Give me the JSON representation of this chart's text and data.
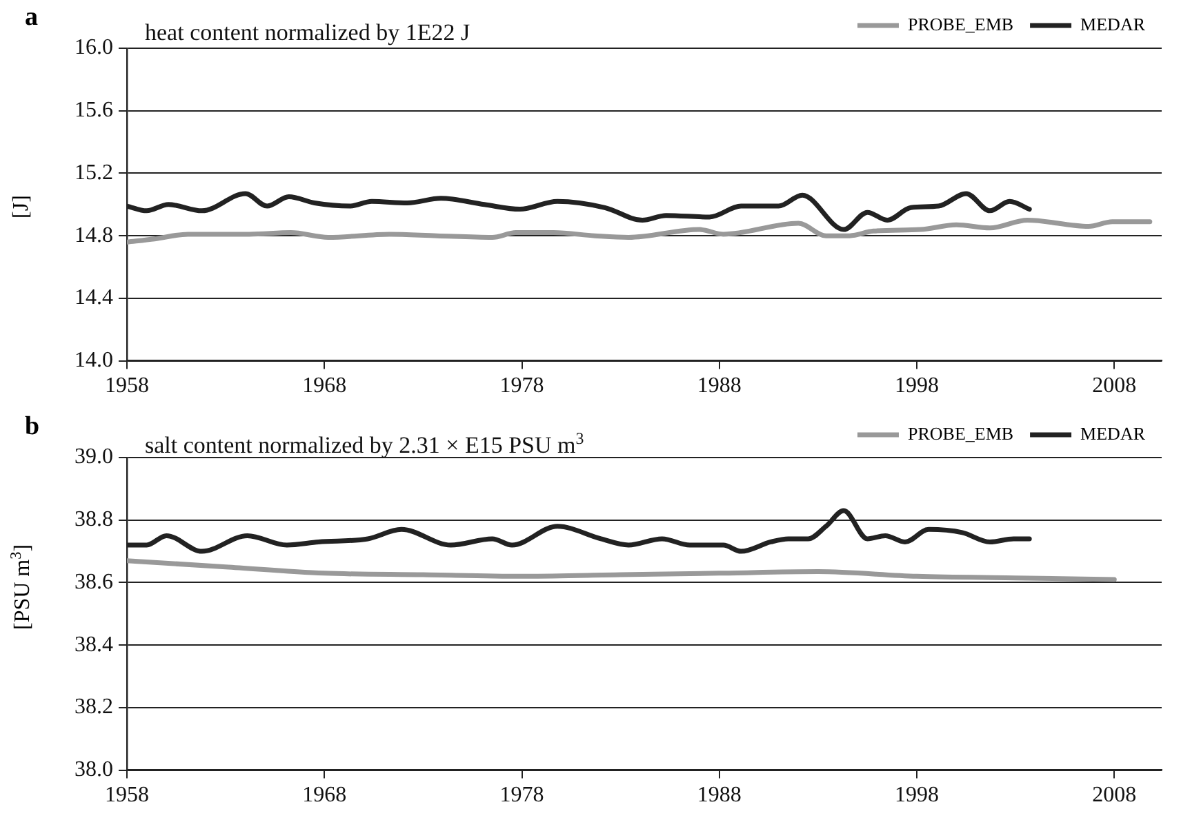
{
  "chart_data": [
    {
      "type": "line",
      "title": "heat content normalized by 1E22 J",
      "ylabel": "[J]",
      "annotations": [
        "a"
      ],
      "legend": "top right",
      "grid": "y",
      "marker": "none",
      "line_style": "solid",
      "xlim": [
        1958,
        2010.4
      ],
      "xticks": [
        1958,
        1968,
        1978,
        1988,
        1998,
        2008
      ],
      "ylim": [
        14.0,
        16.0
      ],
      "yticks": [
        {
          "value": 14.0,
          "label": "14.0"
        },
        {
          "value": 14.4,
          "label": "14.4"
        },
        {
          "value": 14.8,
          "label": "14.8"
        },
        {
          "value": 15.2,
          "label": "15.2"
        },
        {
          "value": 15.6,
          "label": "15.6"
        },
        {
          "value": 16.0,
          "label": "16.0"
        }
      ],
      "series": [
        {
          "name": "PROBE_EMB",
          "color": "#999999",
          "x": [
            1958,
            1959.4,
            1961.1,
            1964.2,
            1966.3,
            1968.2,
            1971.3,
            1973.7,
            1976.5,
            1977.7,
            1979.6,
            1981.7,
            1983.4,
            1987,
            1988.2,
            1992,
            1993.4,
            1994.6,
            1995.8,
            1998.2,
            2000,
            2001.7,
            2003.6,
            2006.7,
            2007.9,
            2009.8
          ],
          "values": [
            14.76,
            14.78,
            14.81,
            14.81,
            14.82,
            14.79,
            14.81,
            14.8,
            14.79,
            14.82,
            14.82,
            14.8,
            14.79,
            14.84,
            14.81,
            14.88,
            14.8,
            14.8,
            14.83,
            14.84,
            14.87,
            14.85,
            14.9,
            14.86,
            14.89,
            14.89
          ]
        },
        {
          "name": "MEDAR",
          "color": "#222222",
          "x": [
            1958,
            1959,
            1960.1,
            1961.8,
            1964,
            1965.1,
            1966.2,
            1967.5,
            1969.3,
            1970.4,
            1972.2,
            1973.9,
            1976.1,
            1977.9,
            1979.8,
            1982.2,
            1984.1,
            1985.3,
            1987.5,
            1989.1,
            1991,
            1992.2,
            1994.3,
            1995.5,
            1996.5,
            1997.7,
            1999.1,
            2000.5,
            2001.7,
            2002.7,
            2003.7
          ],
          "values": [
            14.99,
            14.96,
            15.0,
            14.96,
            15.07,
            14.99,
            15.05,
            15.01,
            14.99,
            15.02,
            15.01,
            15.04,
            15.0,
            14.97,
            15.02,
            14.98,
            14.9,
            14.93,
            14.92,
            14.99,
            14.99,
            15.06,
            14.84,
            14.95,
            14.9,
            14.98,
            14.99,
            15.07,
            14.96,
            15.02,
            14.97
          ]
        }
      ]
    },
    {
      "type": "line",
      "title": "salt content normalized by 2.31 × E15 PSU m$^{3}$",
      "ylabel": "[PSU m$^{3}$]",
      "annotations": [
        "b"
      ],
      "legend": "top right",
      "grid": "y",
      "marker": "none",
      "line_style": "solid",
      "xlim": [
        1958,
        2010.4
      ],
      "xticks": [
        1958,
        1968,
        1978,
        1988,
        1998,
        2008
      ],
      "ylim": [
        38.0,
        39.0
      ],
      "yticks": [
        {
          "value": 38.0,
          "label": "38.0"
        },
        {
          "value": 38.2,
          "label": "38.2"
        },
        {
          "value": 38.4,
          "label": "38.4"
        },
        {
          "value": 38.6,
          "label": "38.6"
        },
        {
          "value": 38.8,
          "label": "38.8"
        },
        {
          "value": 39.0,
          "label": "39.0"
        }
      ],
      "series": [
        {
          "name": "PROBE_EMB",
          "color": "#999999",
          "x": [
            1958,
            1963,
            1968,
            1973,
            1978,
            1983,
            1988,
            1993,
            1998,
            2003,
            2008
          ],
          "values": [
            38.67,
            38.65,
            38.63,
            38.625,
            38.62,
            38.625,
            38.63,
            38.635,
            38.62,
            38.615,
            38.61
          ]
        },
        {
          "name": "MEDAR",
          "color": "#222222",
          "x": [
            1958,
            1959,
            1960,
            1961.8,
            1964.1,
            1966.1,
            1967.7,
            1970.2,
            1971.9,
            1974.4,
            1976.5,
            1977.5,
            1979.8,
            1982,
            1983.4,
            1985.1,
            1986.5,
            1988.2,
            1989.1,
            1990.6,
            1991.5,
            1992.5,
            1993.4,
            1994.3,
            1995.5,
            1996.4,
            1997.4,
            1998.6,
            2000.3,
            2001.7,
            2002.9,
            2003.7
          ],
          "values": [
            38.72,
            38.72,
            38.75,
            38.7,
            38.75,
            38.72,
            38.73,
            38.74,
            38.77,
            38.72,
            38.74,
            38.72,
            38.78,
            38.74,
            38.72,
            38.74,
            38.72,
            38.72,
            38.7,
            38.73,
            38.74,
            38.74,
            38.78,
            38.83,
            38.74,
            38.75,
            38.73,
            38.77,
            38.76,
            38.73,
            38.74,
            38.74
          ]
        }
      ]
    }
  ]
}
